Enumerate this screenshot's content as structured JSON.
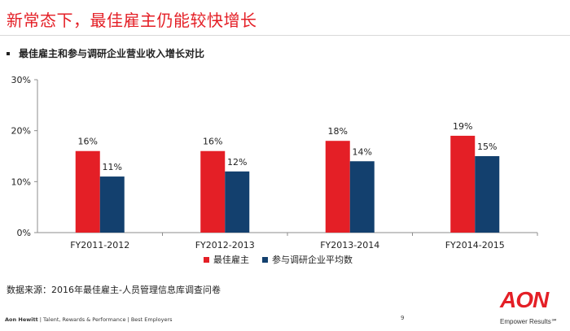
{
  "slide": {
    "title": "新常态下，最佳雇主仍能较快增长",
    "bullet": "最佳雇主和参与调研企业营业收入增长对比",
    "source": "数据来源：2016年最佳雇主-人员管理信息库调查问卷",
    "page_number": "9"
  },
  "footer": {
    "brand": "Aon Hewitt",
    "sep1": " | ",
    "item1": "Talent, Rewards & Performance",
    "sep2": " | ",
    "item2": "Best Employers"
  },
  "logo": {
    "name": "AON",
    "tagline": "Empower Results℠"
  },
  "colors": {
    "accent": "#e41f26",
    "series1": "#e41f26",
    "series2": "#13406e"
  },
  "chart_data": {
    "type": "bar",
    "title": "最佳雇主和参与调研企业营业收入增长对比",
    "xlabel": "",
    "ylabel": "",
    "categories": [
      "FY2011-2012",
      "FY2012-2013",
      "FY2013-2014",
      "FY2014-2015"
    ],
    "series": [
      {
        "name": "最佳雇主",
        "values": [
          16,
          16,
          18,
          19
        ],
        "labels": [
          "16%",
          "16%",
          "18%",
          "19%"
        ],
        "color": "#e41f26"
      },
      {
        "name": "参与调研企业平均数",
        "values": [
          11,
          12,
          14,
          15
        ],
        "labels": [
          "11%",
          "12%",
          "14%",
          "15%"
        ],
        "color": "#13406e"
      }
    ],
    "ylim": [
      0,
      30
    ],
    "yticks": [
      0,
      10,
      20,
      30
    ],
    "ytick_labels": [
      "0%",
      "10%",
      "20%",
      "30%"
    ],
    "grid": false,
    "legend": "bottom"
  }
}
